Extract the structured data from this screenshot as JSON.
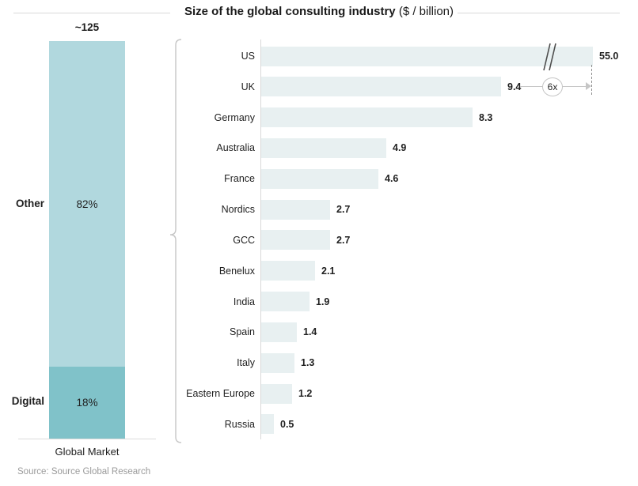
{
  "title": {
    "bold": "Size of the global consulting industry",
    "regular": " ($ / billion)"
  },
  "source_note": "Source: Source Global Research",
  "annotation": {
    "multiplier_label": "6x",
    "meaning": "US market is ~6x the UK market; US bar drawn with an axis break"
  },
  "chart_data": [
    {
      "type": "bar",
      "subtype": "single-stacked-column",
      "categories": [
        "Global Market"
      ],
      "total_label": "~125",
      "series": [
        {
          "name": "Other",
          "pct_label": "82%",
          "values": [
            82
          ],
          "color": "#b1d8de"
        },
        {
          "name": "Digital",
          "pct_label": "18%",
          "values": [
            18
          ],
          "color": "#80c2c9"
        }
      ],
      "labels": {
        "other": "Other",
        "other_pct": "82%",
        "digital": "Digital",
        "digital_pct": "18%",
        "category": "Global Market"
      }
    },
    {
      "type": "bar",
      "orientation": "horizontal",
      "title": "Size of the global consulting industry ($ / billion)",
      "categories": [
        "US",
        "UK",
        "Germany",
        "Australia",
        "France",
        "Nordics",
        "GCC",
        "Benelux",
        "India",
        "Spain",
        "Italy",
        "Eastern Europe",
        "Russia"
      ],
      "values": [
        55.0,
        9.4,
        8.3,
        4.9,
        4.6,
        2.7,
        2.7,
        2.1,
        1.9,
        1.4,
        1.3,
        1.2,
        0.5
      ],
      "value_labels": [
        "55.0",
        "9.4",
        "8.3",
        "4.9",
        "4.6",
        "2.7",
        "2.7",
        "2.1",
        "1.9",
        "1.4",
        "1.3",
        "1.2",
        "0.5"
      ],
      "bar_color": "#e8f0f1",
      "grid": false,
      "legend": false,
      "axis_break": {
        "category": "US",
        "display_units": 13,
        "note": "US bar truncated with // break marks"
      }
    }
  ]
}
